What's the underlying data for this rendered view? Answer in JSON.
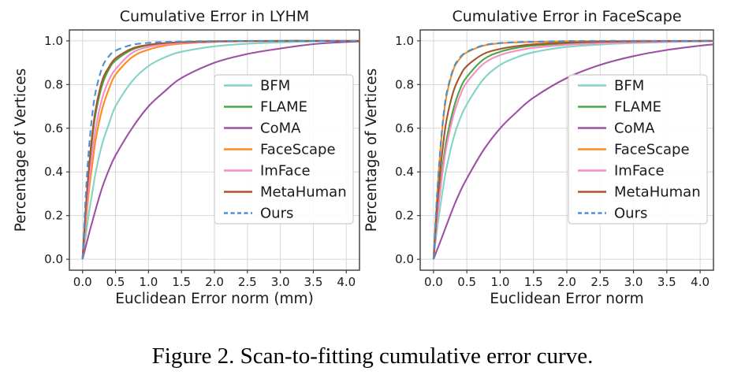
{
  "figure": {
    "caption": "Figure 2. Scan-to-fitting cumulative error curve."
  },
  "theme": {
    "background": "#ffffff",
    "grid_color": "#d6d6d6",
    "axis_color": "#3a3a3a",
    "text_color": "#1a1a1a",
    "legend_border": "#cccccc",
    "legend_fill": "rgba(255,255,255,0.88)"
  },
  "chart_data": [
    {
      "type": "line",
      "title": "Cumulative Error in LYHM",
      "xlabel": "Euclidean Error norm (mm)",
      "ylabel": "Percentage of Vertices",
      "xlim": [
        -0.2,
        4.2
      ],
      "ylim": [
        -0.05,
        1.05
      ],
      "grid": true,
      "legend_position": "center right",
      "x_ticks": [
        0.0,
        0.5,
        1.0,
        1.5,
        2.0,
        2.5,
        3.0,
        3.5,
        4.0
      ],
      "x_tick_labels": [
        "0.0",
        "0.5",
        "1.0",
        "1.5",
        "2.0",
        "2.5",
        "3.0",
        "3.5",
        "4.0"
      ],
      "y_ticks": [
        0.0,
        0.2,
        0.4,
        0.6,
        0.8,
        1.0
      ],
      "y_tick_labels": [
        "0.0",
        "0.2",
        "0.4",
        "0.6",
        "0.8",
        "1.0"
      ],
      "x": [
        0,
        0.05,
        0.1,
        0.15,
        0.2,
        0.3,
        0.4,
        0.5,
        0.75,
        1.0,
        1.25,
        1.5,
        2.0,
        2.5,
        3.0,
        3.5,
        4.0,
        4.2
      ],
      "series": [
        {
          "name": "BFM",
          "color": "#82d3c6",
          "style": "solid",
          "values": [
            0,
            0.11,
            0.22,
            0.31,
            0.4,
            0.53,
            0.62,
            0.7,
            0.815,
            0.885,
            0.925,
            0.95,
            0.975,
            0.987,
            0.993,
            0.997,
            0.999,
            1
          ]
        },
        {
          "name": "FLAME",
          "color": "#46a746",
          "style": "solid",
          "values": [
            0,
            0.23,
            0.41,
            0.56,
            0.67,
            0.8,
            0.87,
            0.91,
            0.96,
            0.98,
            0.988,
            0.993,
            0.997,
            0.999,
            1,
            1,
            1,
            1
          ]
        },
        {
          "name": "CoMA",
          "color": "#9d50a5",
          "style": "solid",
          "values": [
            0,
            0.06,
            0.12,
            0.175,
            0.23,
            0.33,
            0.41,
            0.475,
            0.6,
            0.7,
            0.77,
            0.83,
            0.9,
            0.94,
            0.965,
            0.985,
            0.995,
            0.997
          ]
        },
        {
          "name": "FaceScape",
          "color": "#ff8b19",
          "style": "solid",
          "values": [
            0,
            0.17,
            0.32,
            0.44,
            0.55,
            0.69,
            0.78,
            0.845,
            0.925,
            0.96,
            0.978,
            0.987,
            0.995,
            0.998,
            0.999,
            1,
            1,
            1
          ]
        },
        {
          "name": "ImFace",
          "color": "#fb8cc3",
          "style": "solid",
          "values": [
            0,
            0.2,
            0.36,
            0.49,
            0.6,
            0.74,
            0.82,
            0.87,
            0.945,
            0.972,
            0.984,
            0.99,
            0.996,
            0.998,
            0.999,
            1,
            1,
            1
          ]
        },
        {
          "name": "MetaHuman",
          "color": "#a5552b",
          "style": "solid",
          "values": [
            0,
            0.24,
            0.43,
            0.58,
            0.69,
            0.82,
            0.88,
            0.92,
            0.965,
            0.982,
            0.99,
            0.994,
            0.998,
            0.999,
            1,
            1,
            1,
            1
          ]
        },
        {
          "name": "Ours",
          "color": "#4a90d2",
          "style": "dashed",
          "values": [
            0,
            0.3,
            0.52,
            0.67,
            0.77,
            0.88,
            0.93,
            0.955,
            0.982,
            0.991,
            0.995,
            0.997,
            0.999,
            1,
            1,
            1,
            1,
            1
          ]
        }
      ]
    },
    {
      "type": "line",
      "title": "Cumulative Error in FaceScape",
      "xlabel": "Euclidean Error norm",
      "ylabel": "Percentage of Vertices",
      "xlim": [
        -0.2,
        4.2
      ],
      "ylim": [
        -0.05,
        1.05
      ],
      "grid": true,
      "legend_position": "center right",
      "x_ticks": [
        0.0,
        0.5,
        1.0,
        1.5,
        2.0,
        2.5,
        3.0,
        3.5,
        4.0
      ],
      "x_tick_labels": [
        "0.0",
        "0.5",
        "1.0",
        "1.5",
        "2.0",
        "2.5",
        "3.0",
        "3.5",
        "4.0"
      ],
      "y_ticks": [
        0.0,
        0.2,
        0.4,
        0.6,
        0.8,
        1.0
      ],
      "y_tick_labels": [
        "0.0",
        "0.2",
        "0.4",
        "0.6",
        "0.8",
        "1.0"
      ],
      "x": [
        0,
        0.05,
        0.1,
        0.15,
        0.2,
        0.3,
        0.4,
        0.5,
        0.75,
        1.0,
        1.25,
        1.5,
        2.0,
        2.5,
        3.0,
        3.5,
        4.0,
        4.2
      ],
      "series": [
        {
          "name": "BFM",
          "color": "#82d3c6",
          "style": "solid",
          "values": [
            0,
            0.13,
            0.24,
            0.34,
            0.425,
            0.555,
            0.645,
            0.71,
            0.825,
            0.89,
            0.925,
            0.948,
            0.972,
            0.983,
            0.99,
            0.994,
            0.997,
            0.998
          ]
        },
        {
          "name": "FLAME",
          "color": "#46a746",
          "style": "solid",
          "values": [
            0,
            0.18,
            0.33,
            0.455,
            0.555,
            0.69,
            0.78,
            0.835,
            0.915,
            0.95,
            0.968,
            0.978,
            0.988,
            0.993,
            0.996,
            0.998,
            0.999,
            1
          ]
        },
        {
          "name": "CoMA",
          "color": "#9d50a5",
          "style": "solid",
          "values": [
            0,
            0.04,
            0.08,
            0.12,
            0.16,
            0.24,
            0.31,
            0.37,
            0.5,
            0.6,
            0.675,
            0.74,
            0.83,
            0.89,
            0.93,
            0.958,
            0.978,
            0.984
          ]
        },
        {
          "name": "FaceScape",
          "color": "#ff8b19",
          "style": "solid",
          "values": [
            0,
            0.27,
            0.49,
            0.65,
            0.755,
            0.87,
            0.92,
            0.947,
            0.978,
            0.989,
            0.993,
            0.995,
            0.998,
            0.999,
            1,
            1,
            1,
            1
          ]
        },
        {
          "name": "ImFace",
          "color": "#fb8cc3",
          "style": "solid",
          "values": [
            0,
            0.17,
            0.31,
            0.43,
            0.525,
            0.66,
            0.75,
            0.81,
            0.895,
            0.935,
            0.955,
            0.968,
            0.982,
            0.989,
            0.993,
            0.996,
            0.998,
            0.999
          ]
        },
        {
          "name": "MetaHuman",
          "color": "#a5552b",
          "style": "solid",
          "values": [
            0,
            0.22,
            0.4,
            0.54,
            0.645,
            0.77,
            0.84,
            0.885,
            0.94,
            0.963,
            0.976,
            0.984,
            0.992,
            0.996,
            0.998,
            0.999,
            1,
            1
          ]
        },
        {
          "name": "Ours",
          "color": "#4a90d2",
          "style": "dashed",
          "values": [
            0,
            0.28,
            0.5,
            0.66,
            0.765,
            0.875,
            0.925,
            0.95,
            0.98,
            0.99,
            0.994,
            0.996,
            0.999,
            1,
            1,
            1,
            1,
            1
          ]
        }
      ]
    }
  ]
}
